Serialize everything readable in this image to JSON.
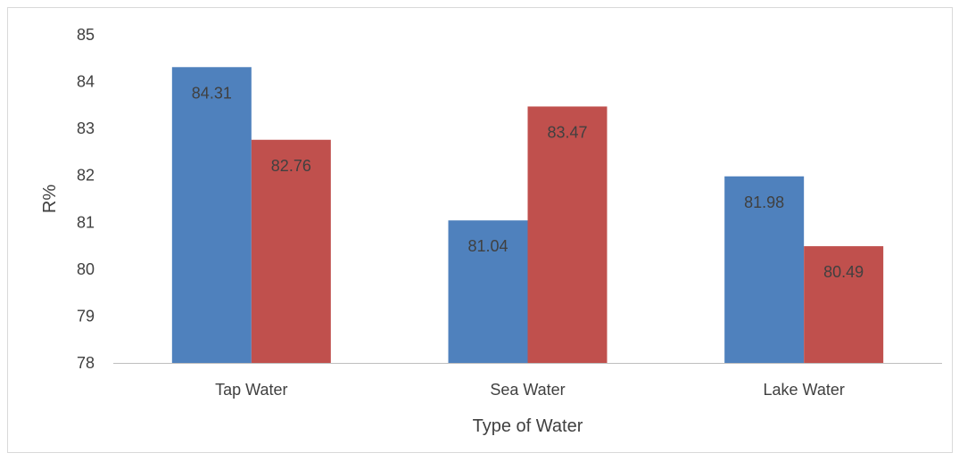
{
  "chart_data": {
    "type": "bar",
    "title": "",
    "xlabel": "Type of Water",
    "ylabel": "R%",
    "categories": [
      "Tap Water",
      "Sea Water",
      "Lake Water"
    ],
    "series": [
      {
        "color": "#4F81BD",
        "values": [
          84.31,
          81.04,
          81.98
        ],
        "labels": [
          "84.31",
          "81.04",
          "81.98"
        ]
      },
      {
        "color": "#C0504D",
        "values": [
          82.76,
          83.47,
          80.49
        ],
        "labels": [
          "82.76",
          "83.47",
          "80.49"
        ]
      }
    ],
    "ylim": [
      78,
      85
    ],
    "yticks": [
      "78",
      "79",
      "80",
      "81",
      "82",
      "83",
      "84",
      "85"
    ],
    "grid": false,
    "legend": "none"
  }
}
